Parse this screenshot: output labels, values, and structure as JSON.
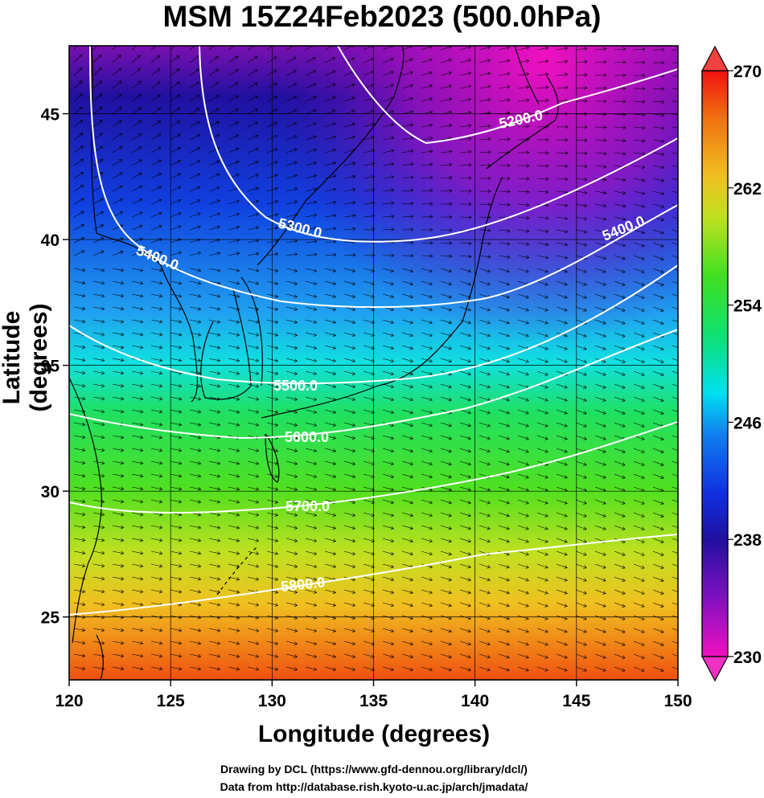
{
  "title": "MSM 15Z24Feb2023 (500.0hPa)",
  "axes": {
    "xlabel": "Longitude (degrees)",
    "ylabel": "Latitude  (degrees)",
    "xlim": [
      120,
      150
    ],
    "ylim": [
      22.5,
      47.7
    ],
    "xticks": [
      "120",
      "125",
      "130",
      "135",
      "140",
      "145",
      "150"
    ],
    "yticks": [
      "25",
      "30",
      "35",
      "40",
      "45"
    ]
  },
  "colorbar": {
    "range": [
      230,
      270
    ],
    "ticks": [
      "270",
      "262",
      "254",
      "246",
      "238",
      "230"
    ]
  },
  "contours": [
    {
      "label": "5200.0"
    },
    {
      "label": "5300.0"
    },
    {
      "label": "5400.0"
    },
    {
      "label": "5400.0"
    },
    {
      "label": "5500.0"
    },
    {
      "label": "5600.0"
    },
    {
      "label": "5700.0"
    },
    {
      "label": "5800.0"
    }
  ],
  "credits": {
    "line1": "Drawing by DCL (https://www.gfd-dennou.org/library/dcl/)",
    "line2": "Data from http://database.rish.kyoto-u.ac.jp/arch/jmadata/"
  },
  "colors": {
    "warm": "#f06010",
    "yellow": "#e8e020",
    "green": "#20d820",
    "cyan": "#00e0f0",
    "blue": "#1030e0",
    "navy": "#2010a0",
    "magenta": "#e010c0",
    "contour": "#ffffff",
    "coastline": "#000000"
  }
}
